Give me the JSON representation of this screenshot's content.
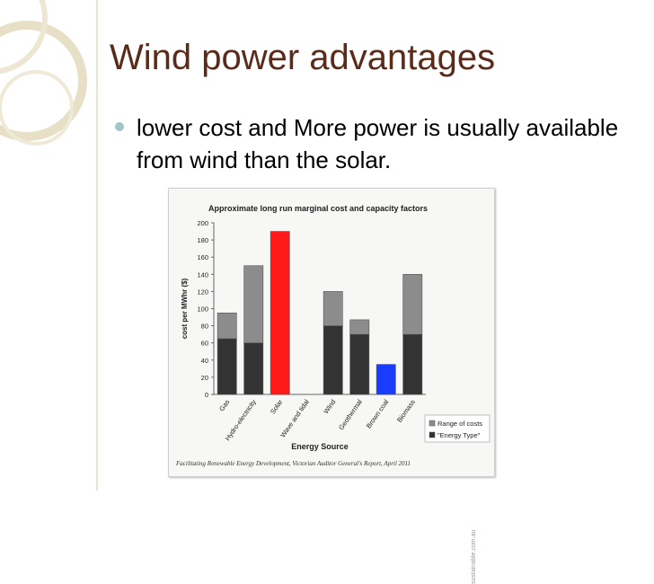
{
  "slide": {
    "title": "Wind power advantages",
    "bullet": "lower cost and More power is usually available from wind than the solar."
  },
  "colors": {
    "title": "#5a2a1a",
    "bullet": "#9fc7c7",
    "range_bar": "#8c8c8c",
    "energy_bar": "#333333",
    "solar_bar": "#ff1a1a",
    "brown_coal_bar": "#1a3cff"
  },
  "chart_data": {
    "type": "bar",
    "stacked": true,
    "title": "Approximate long run marginal cost and capacity factors",
    "xlabel": "Energy Source",
    "ylabel": "cost per MWhr ($)",
    "ylim": [
      0,
      200
    ],
    "yticks": [
      0,
      20,
      40,
      60,
      80,
      100,
      120,
      140,
      160,
      180,
      200
    ],
    "categories": [
      "Gas",
      "Hydro-electricity",
      "Solar",
      "Wave and tidal",
      "Wind",
      "Geothermal",
      "Brown coal",
      "Biomass"
    ],
    "series": [
      {
        "name": "\"Energy Type\"",
        "values": [
          65,
          60,
          190,
          0,
          80,
          70,
          35,
          70
        ]
      },
      {
        "name": "Range of costs",
        "values": [
          30,
          90,
          0,
          0,
          40,
          17,
          0,
          70
        ]
      }
    ],
    "legend": "bottom-right",
    "grid": false,
    "source": "Facilitating Renewable Energy Development, Victorian Auditor General's Report, April 2011",
    "watermark": "sustainable.com.au"
  }
}
